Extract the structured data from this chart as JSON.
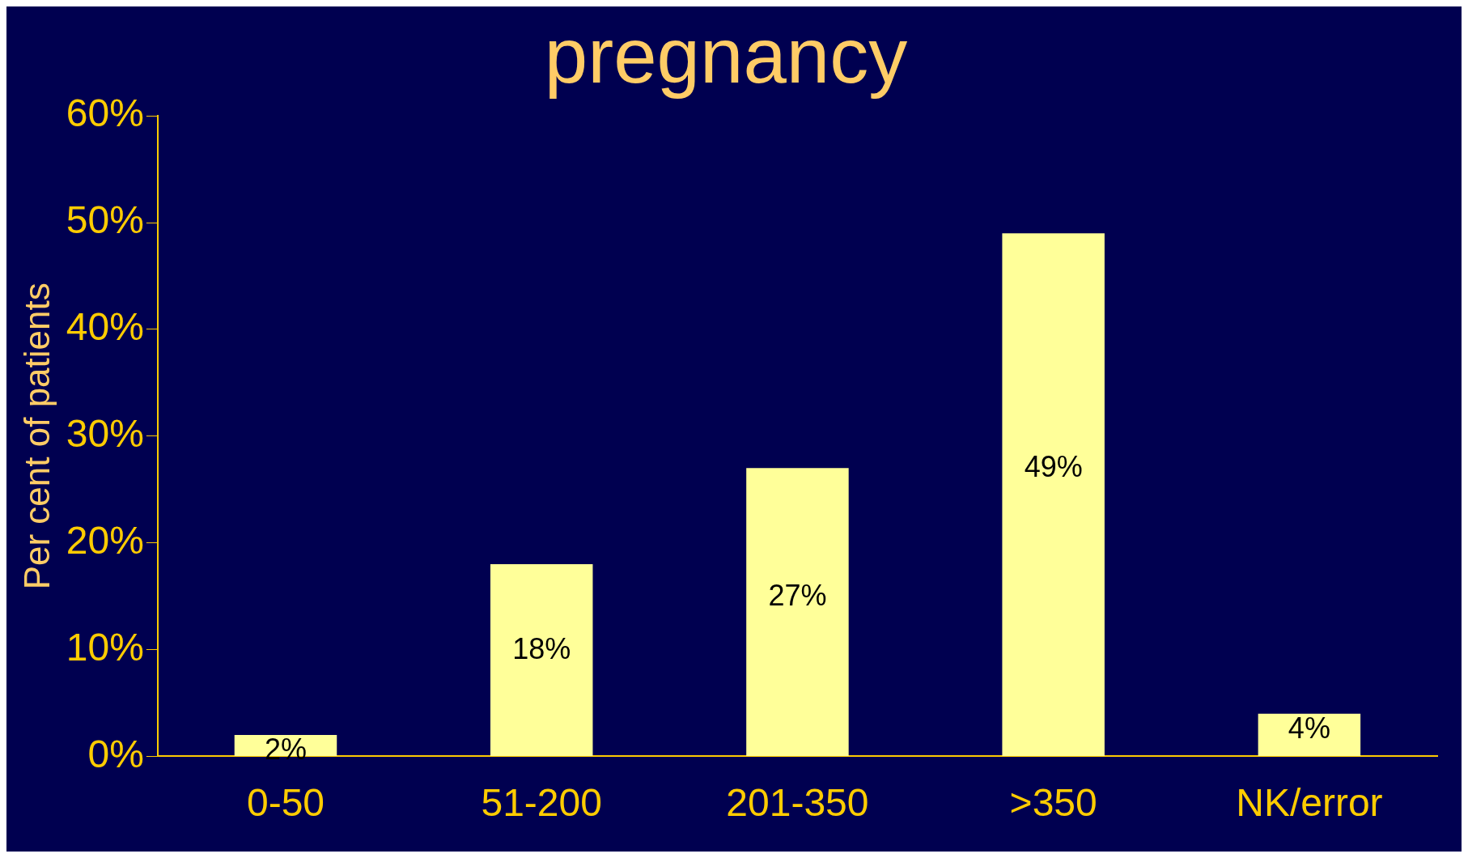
{
  "chart_data": {
    "type": "bar",
    "title": "pregnancy",
    "ylabel": "Per cent of patients",
    "categories": [
      "0-50",
      "51-200",
      "201-350",
      ">350",
      "NK/error"
    ],
    "values": [
      2,
      18,
      27,
      49,
      4
    ],
    "value_labels": [
      "2%",
      "18%",
      "27%",
      "49%",
      "4%"
    ],
    "color": "#ffff99",
    "ylim": [
      0,
      60
    ],
    "yticks": [
      {
        "value": 0,
        "label": "0%"
      },
      {
        "value": 10,
        "label": "10%"
      },
      {
        "value": 20,
        "label": "20%"
      },
      {
        "value": 30,
        "label": "30%"
      },
      {
        "value": 40,
        "label": "40%"
      },
      {
        "value": 50,
        "label": "50%"
      },
      {
        "value": 60,
        "label": "60%"
      }
    ],
    "grid": false,
    "legend": false
  }
}
